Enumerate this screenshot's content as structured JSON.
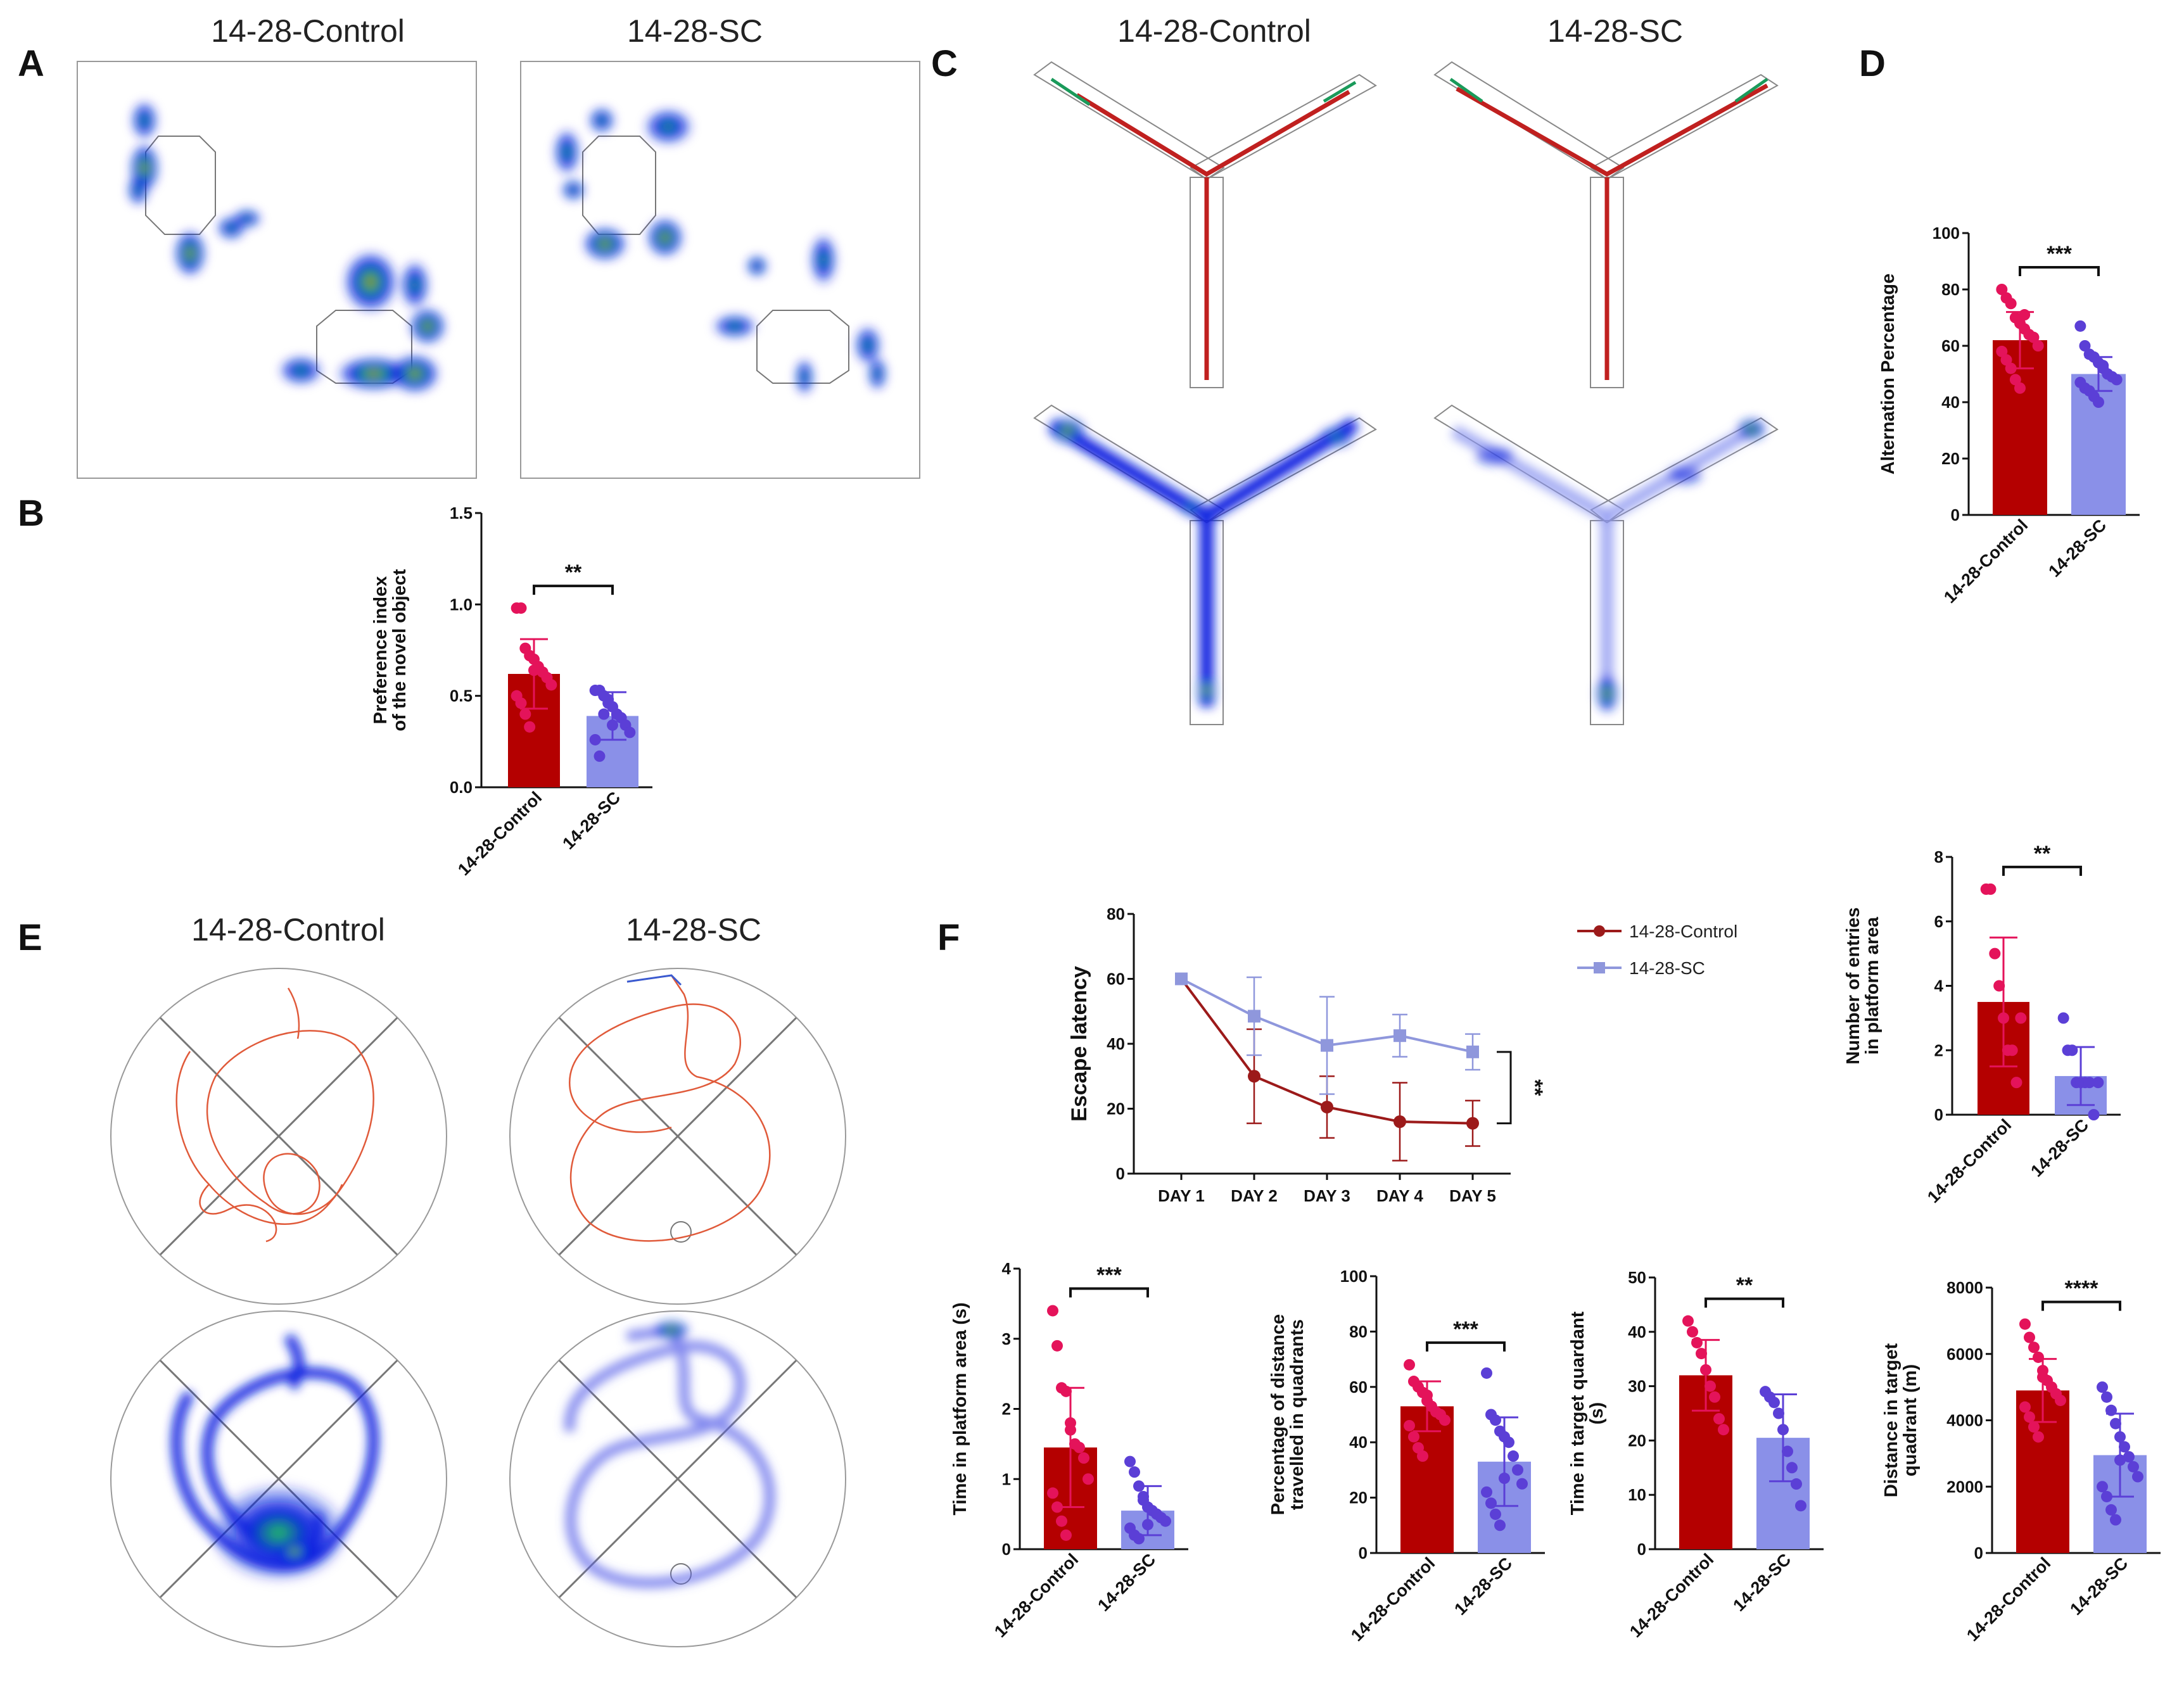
{
  "colors": {
    "control": "#b40000",
    "control_points": "#e4135a",
    "sc": "#8a90e8",
    "sc_points": "#5b3fd6",
    "latency_control": "#9c1a1a",
    "latency_sc": "#8f97dc",
    "heat_low": "#0a23e0",
    "heat_mid": "#22c55e",
    "heat_high": "#e11d2a",
    "track": "#e05a3a",
    "arena_line": "#888888"
  },
  "panels": {
    "A": {
      "label": "A",
      "titles": [
        "14-28-Control",
        "14-28-SC"
      ],
      "heatmap_icon": "novel-object-heatmap"
    },
    "C": {
      "label": "C",
      "titles": [
        "14-28-Control",
        "14-28-SC"
      ],
      "maze_icon": "y-maze-track-and-heatmap"
    },
    "E": {
      "label": "E",
      "titles": [
        "14-28-Control",
        "14-28-SC"
      ],
      "pool_icon": "water-maze-track-and-heatmap"
    }
  },
  "chart_data": [
    {
      "id": "B",
      "label": "B",
      "type": "bar",
      "ylabel_lines": [
        "Preference index",
        "of the novel object"
      ],
      "categories": [
        "14-28-Control",
        "14-28-SC"
      ],
      "values": [
        0.62,
        0.39
      ],
      "errors": [
        0.19,
        0.13
      ],
      "ylim": [
        0,
        1.5
      ],
      "yticks": [
        0,
        0.5,
        1.0,
        1.5
      ],
      "ytick_labels": [
        "0.0",
        "0.5",
        "1.0",
        "1.5"
      ],
      "significance": "**",
      "points": [
        [
          0.98,
          0.98,
          0.76,
          0.72,
          0.7,
          0.66,
          0.63,
          0.6,
          0.56,
          0.5,
          0.46,
          0.4,
          0.33,
          0.64
        ],
        [
          0.53,
          0.53,
          0.5,
          0.46,
          0.44,
          0.4,
          0.38,
          0.34,
          0.3,
          0.26,
          0.17,
          0.4,
          0.48,
          0.34
        ]
      ]
    },
    {
      "id": "D",
      "label": "D",
      "type": "bar",
      "ylabel_lines": [
        "Alternation Percentage"
      ],
      "categories": [
        "14-28-Control",
        "14-28-SC"
      ],
      "values": [
        62,
        50
      ],
      "errors": [
        10,
        6
      ],
      "ylim": [
        0,
        100
      ],
      "yticks": [
        0,
        20,
        40,
        60,
        80,
        100
      ],
      "ytick_labels": [
        "0",
        "20",
        "40",
        "60",
        "80",
        "100"
      ],
      "significance": "***",
      "points": [
        [
          80,
          77,
          75,
          70,
          68,
          66,
          64,
          63,
          60,
          58,
          55,
          52,
          48,
          45,
          71
        ],
        [
          67,
          60,
          57,
          56,
          54,
          52,
          50,
          49,
          48,
          47,
          45,
          44,
          42,
          40,
          53
        ]
      ]
    },
    {
      "id": "F-latency",
      "label": "F",
      "type": "line",
      "ylabel": "Escape latency",
      "categories": [
        "DAY 1",
        "DAY 2",
        "DAY 3",
        "DAY 4",
        "DAY 5"
      ],
      "ylim": [
        0,
        80
      ],
      "yticks": [
        0,
        20,
        40,
        60,
        80
      ],
      "ytick_labels": [
        "0",
        "20",
        "40",
        "60",
        "80"
      ],
      "significance": "**",
      "series": [
        {
          "name": "14-28-Control",
          "values": [
            60,
            30,
            20.5,
            16,
            15.5
          ],
          "errors": [
            0,
            14.5,
            9.5,
            12,
            7
          ],
          "marker": "circle"
        },
        {
          "name": "14-28-SC",
          "values": [
            60,
            48.5,
            39.5,
            42.5,
            37.5
          ],
          "errors": [
            0,
            12,
            15,
            6.5,
            5.5
          ],
          "marker": "square"
        }
      ]
    },
    {
      "id": "F-entries",
      "type": "bar",
      "ylabel_lines": [
        "Number of entries",
        "in platform area"
      ],
      "categories": [
        "14-28-Control",
        "14-28-SC"
      ],
      "values": [
        3.5,
        1.2
      ],
      "errors": [
        2.0,
        0.9
      ],
      "ylim": [
        0,
        8
      ],
      "yticks": [
        0,
        2,
        4,
        6,
        8
      ],
      "ytick_labels": [
        "0",
        "2",
        "4",
        "6",
        "8"
      ],
      "significance": "**",
      "points": [
        [
          7,
          7,
          5,
          4,
          3,
          2,
          2,
          1,
          3
        ],
        [
          3,
          2,
          2,
          1,
          1,
          1,
          1,
          0,
          1
        ]
      ]
    },
    {
      "id": "F-time-platform",
      "type": "bar",
      "ylabel_lines": [
        "Time in platform area (s)"
      ],
      "categories": [
        "14-28-Control",
        "14-28-SC"
      ],
      "values": [
        1.45,
        0.55
      ],
      "errors": [
        0.85,
        0.35
      ],
      "ylim": [
        0,
        4
      ],
      "yticks": [
        0,
        1,
        2,
        3,
        4
      ],
      "ytick_labels": [
        "0",
        "1",
        "2",
        "3",
        "4"
      ],
      "significance": "***",
      "points": [
        [
          3.4,
          2.9,
          2.3,
          2.25,
          1.8,
          1.5,
          1.45,
          1.3,
          1.0,
          0.8,
          0.6,
          0.4,
          0.2,
          1.7
        ],
        [
          1.25,
          1.1,
          0.9,
          0.75,
          0.6,
          0.55,
          0.5,
          0.45,
          0.4,
          0.3,
          0.2,
          0.15,
          0.7,
          0.35
        ]
      ]
    },
    {
      "id": "F-percent-distance",
      "type": "bar",
      "ylabel_lines": [
        "Percentage of distance",
        "travelled in quadrants"
      ],
      "categories": [
        "14-28-Control",
        "14-28-SC"
      ],
      "values": [
        53,
        33
      ],
      "errors": [
        9,
        16
      ],
      "ylim": [
        0,
        100
      ],
      "yticks": [
        0,
        20,
        40,
        60,
        80,
        100
      ],
      "ytick_labels": [
        "0",
        "20",
        "40",
        "60",
        "80",
        "100"
      ],
      "significance": "***",
      "points": [
        [
          68,
          62,
          60,
          58,
          55,
          53,
          51,
          50,
          48,
          46,
          42,
          38,
          35,
          57
        ],
        [
          65,
          50,
          48,
          44,
          42,
          40,
          35,
          30,
          25,
          22,
          18,
          14,
          10,
          27
        ]
      ]
    },
    {
      "id": "F-time-quadrant",
      "type": "bar",
      "ylabel_lines": [
        "Time in target quardant",
        "(s)"
      ],
      "categories": [
        "14-28-Control",
        "14-28-SC"
      ],
      "values": [
        32,
        20.5
      ],
      "errors": [
        6.5,
        8
      ],
      "ylim": [
        0,
        50
      ],
      "yticks": [
        0,
        10,
        20,
        30,
        40,
        50
      ],
      "ytick_labels": [
        "0",
        "10",
        "20",
        "30",
        "40",
        "50"
      ],
      "significance": "**",
      "points": [
        [
          42,
          40,
          38,
          36,
          33,
          30,
          28,
          24,
          22
        ],
        [
          29,
          28,
          27,
          25,
          22,
          18,
          15,
          12,
          8
        ]
      ]
    },
    {
      "id": "F-distance-quadrant",
      "type": "bar",
      "ylabel_lines": [
        "Distance in target",
        "quadrant (m)"
      ],
      "categories": [
        "14-28-Control",
        "14-28-SC"
      ],
      "values": [
        4900,
        2950
      ],
      "errors": [
        950,
        1250
      ],
      "ylim": [
        0,
        8000
      ],
      "yticks": [
        0,
        2000,
        4000,
        6000,
        8000
      ],
      "ytick_labels": [
        "0",
        "2000",
        "4000",
        "6000",
        "8000"
      ],
      "significance": "****",
      "points": [
        [
          6900,
          6500,
          6200,
          5900,
          5500,
          5200,
          5000,
          4800,
          4600,
          4400,
          4100,
          3800,
          3500,
          5300
        ],
        [
          5000,
          4700,
          4300,
          3900,
          3500,
          3200,
          2900,
          2600,
          2300,
          2000,
          1700,
          1300,
          1000,
          2800
        ]
      ]
    }
  ]
}
